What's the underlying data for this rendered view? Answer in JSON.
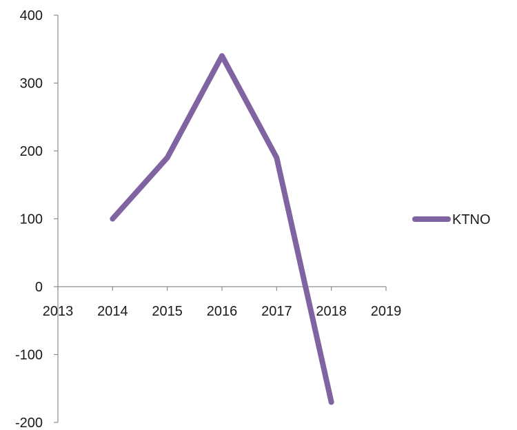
{
  "chart_data": {
    "type": "line",
    "title": "",
    "xlabel": "",
    "ylabel": "",
    "x": [
      2014,
      2015,
      2016,
      2017,
      2018
    ],
    "series": [
      {
        "name": "KTNO",
        "color": "#8064a2",
        "values": [
          100,
          190,
          340,
          190,
          -170
        ]
      }
    ],
    "xlim": [
      2013,
      2019
    ],
    "ylim": [
      -200,
      400
    ],
    "x_ticks": [
      2013,
      2014,
      2015,
      2016,
      2017,
      2018,
      2019
    ],
    "y_ticks": [
      -200,
      -100,
      0,
      100,
      200,
      300,
      400
    ],
    "grid": false,
    "legend_position": "right"
  }
}
